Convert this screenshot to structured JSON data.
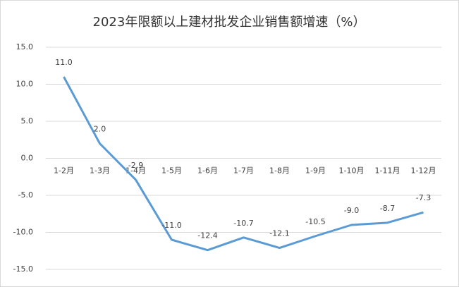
{
  "chart_data": {
    "type": "line",
    "title": "2023年限额以上建材批发企业销售额增速（%）",
    "categories": [
      "1-2月",
      "1-3月",
      "1-4月",
      "1-5月",
      "1-6月",
      "1-7月",
      "1-8月",
      "1-9月",
      "1-10月",
      "1-11月",
      "1-12月"
    ],
    "series": [
      {
        "name": "增速",
        "color": "#5b9bd5",
        "values": [
          11.0,
          2.0,
          -2.9,
          -11.0,
          -12.4,
          -10.7,
          -12.1,
          -10.5,
          -9.0,
          -8.7,
          -7.3
        ],
        "value_labels": [
          "11.0",
          "2.0",
          "-2.9",
          "-11.0",
          "-12.4",
          "-10.7",
          "-12.1",
          "-10.5",
          "-9.0",
          "-8.7",
          "-7.3"
        ]
      }
    ],
    "ylim": [
      -15,
      15
    ],
    "yticks": [
      {
        "value": -15,
        "label": "-15.0"
      },
      {
        "value": -10,
        "label": "-10.0"
      },
      {
        "value": -5,
        "label": "-5.0"
      },
      {
        "value": 0,
        "label": "0.0"
      },
      {
        "value": 5,
        "label": "5.0"
      },
      {
        "value": 10,
        "label": "10.0"
      },
      {
        "value": 15,
        "label": "15.0"
      }
    ],
    "grid": true
  }
}
